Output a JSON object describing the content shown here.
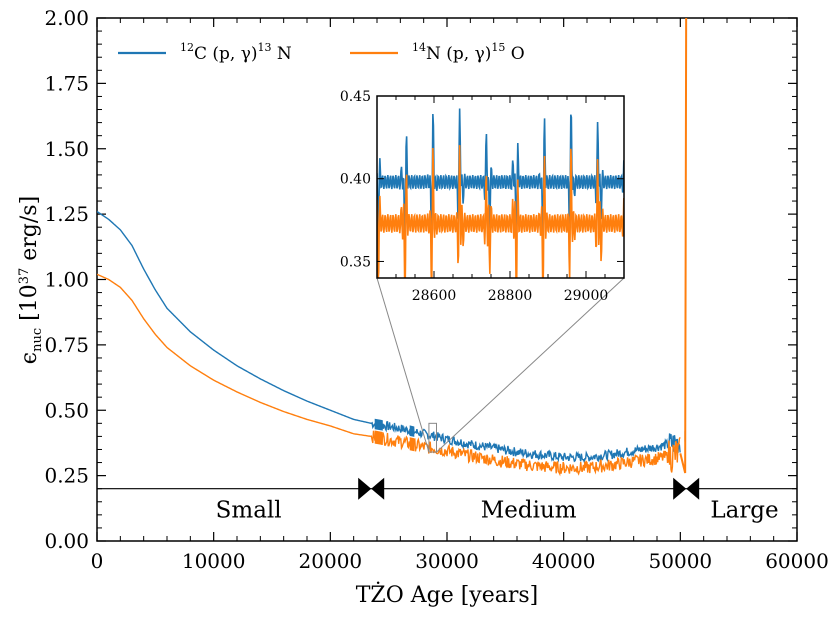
{
  "chart_data": {
    "type": "line",
    "xlabel": "TŻO Age [years]",
    "ylabel_main": "ϵ",
    "ylabel_sub": "nuc",
    "ylabel_rest": " [10",
    "ylabel_exp": "37",
    "ylabel_unit": " erg/s]",
    "xlim": [
      0,
      60000
    ],
    "ylim": [
      0,
      2.0
    ],
    "x_ticks": [
      0,
      10000,
      20000,
      30000,
      40000,
      50000,
      60000
    ],
    "x_tick_labels": [
      "0",
      "10000",
      "20000",
      "30000",
      "40000",
      "50000",
      "60000"
    ],
    "y_ticks": [
      0,
      0.25,
      0.5,
      0.75,
      1.0,
      1.25,
      1.5,
      1.75,
      2.0
    ],
    "y_tick_labels": [
      "0.00",
      "0.25",
      "0.50",
      "0.75",
      "1.00",
      "1.25",
      "1.50",
      "1.75",
      "2.00"
    ],
    "series": [
      {
        "name": "12C(p,γ)13N",
        "legend_pre": "12",
        "legend_mid": "C (p, γ)",
        "legend_exp": "13",
        "legend_post": " N",
        "color": "#1f77b4",
        "x": [
          0,
          1000,
          2000,
          3000,
          4000,
          5000,
          6000,
          8000,
          10000,
          12000,
          14000,
          16000,
          18000,
          20000,
          22000,
          23500,
          26000,
          28000,
          30000,
          32000,
          34000,
          36000,
          38000,
          40000,
          42000,
          44000,
          46000,
          48000,
          50000
        ],
        "y": [
          1.26,
          1.23,
          1.19,
          1.13,
          1.04,
          0.96,
          0.89,
          0.8,
          0.73,
          0.67,
          0.62,
          0.575,
          0.535,
          0.5,
          0.465,
          0.45,
          0.43,
          0.41,
          0.39,
          0.37,
          0.355,
          0.34,
          0.33,
          0.32,
          0.32,
          0.33,
          0.345,
          0.36,
          0.38
        ]
      },
      {
        "name": "14N(p,γ)15O",
        "legend_pre": "14",
        "legend_mid": "N (p, γ)",
        "legend_exp": "15",
        "legend_post": " O",
        "color": "#ff7f0e",
        "x": [
          0,
          1000,
          2000,
          3000,
          4000,
          5000,
          6000,
          8000,
          10000,
          12000,
          14000,
          16000,
          18000,
          20000,
          22000,
          23500,
          26000,
          28000,
          30000,
          32000,
          34000,
          36000,
          38000,
          40000,
          42000,
          44000,
          46000,
          48000,
          50000
        ],
        "y": [
          1.02,
          1.0,
          0.97,
          0.92,
          0.85,
          0.79,
          0.74,
          0.67,
          0.615,
          0.57,
          0.53,
          0.495,
          0.465,
          0.44,
          0.41,
          0.4,
          0.38,
          0.36,
          0.345,
          0.325,
          0.31,
          0.295,
          0.285,
          0.28,
          0.28,
          0.29,
          0.305,
          0.315,
          0.335
        ]
      }
    ],
    "spike_x": 50500,
    "phases": {
      "line_y": 0.2,
      "boundaries": [
        23500,
        50500
      ],
      "labels": [
        {
          "text": "Small",
          "x": 13000
        },
        {
          "text": "Medium",
          "x": 37000
        },
        {
          "text": "Large",
          "x": 55500
        }
      ]
    },
    "inset": {
      "xlim": [
        28450,
        29100
      ],
      "ylim": [
        0.34,
        0.45
      ],
      "x_ticks": [
        28600,
        28800,
        29000
      ],
      "x_tick_labels": [
        "28600",
        "28800",
        "29000"
      ],
      "y_ticks": [
        0.35,
        0.4,
        0.45
      ],
      "y_tick_labels": [
        "0.35",
        "0.40",
        "0.45"
      ],
      "zoom_box_x": [
        28450,
        29100
      ],
      "zoom_box_y": [
        0.34,
        0.45
      ]
    }
  }
}
